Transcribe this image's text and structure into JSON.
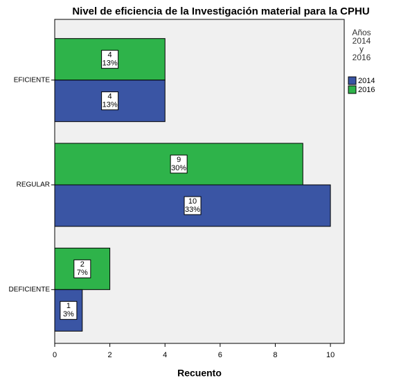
{
  "chart_data": {
    "type": "bar",
    "orientation": "horizontal",
    "title": "Nivel de eficiencia de la Investigación material para la CPHU",
    "x_label": "Recuento",
    "categories": [
      "EFICIENTE",
      "REGULAR",
      "DEFICIENTE"
    ],
    "legend_title": "Años 2014 y 2016",
    "series": [
      {
        "name": "2016",
        "color": "#2eb34a",
        "values": [
          4,
          9,
          2
        ],
        "percent_labels": [
          "13%",
          "30%",
          "7%"
        ]
      },
      {
        "name": "2014",
        "color": "#3a55a4",
        "values": [
          4,
          10,
          1
        ],
        "percent_labels": [
          "13%",
          "33%",
          "3%"
        ]
      }
    ],
    "legend_order": [
      1,
      0
    ],
    "xlim": [
      0,
      10.5
    ],
    "xticks": [
      0,
      2,
      4,
      6,
      8,
      10
    ]
  }
}
